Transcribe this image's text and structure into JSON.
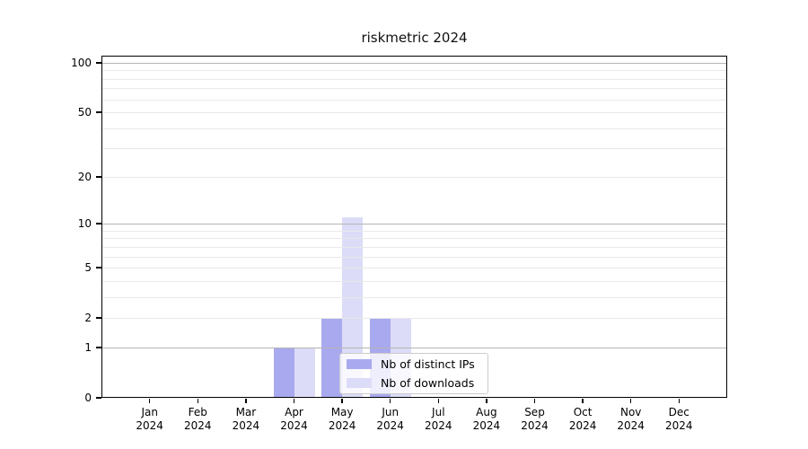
{
  "chart_data": {
    "type": "bar",
    "title": "riskmetric 2024",
    "categories": [
      "Jan 2024",
      "Feb 2024",
      "Mar 2024",
      "Apr 2024",
      "May 2024",
      "Jun 2024",
      "Jul 2024",
      "Aug 2024",
      "Sep 2024",
      "Oct 2024",
      "Nov 2024",
      "Dec 2024"
    ],
    "series": [
      {
        "name": "Nb of distinct IPs",
        "color": "#a9a9ef",
        "values": [
          0,
          0,
          0,
          1,
          2,
          2,
          0,
          0,
          0,
          0,
          0,
          0
        ]
      },
      {
        "name": "Nb of downloads",
        "color": "#dcdcf8",
        "values": [
          0,
          0,
          0,
          1,
          11,
          2,
          0,
          0,
          0,
          0,
          0,
          0
        ]
      }
    ],
    "yscale": "log1p",
    "yticks": [
      0,
      1,
      2,
      5,
      10,
      20,
      50,
      100
    ],
    "ylim": [
      0,
      110
    ],
    "grid": true,
    "legend_position": "lower-center",
    "xlabel": "",
    "ylabel": ""
  },
  "colors": {
    "grid_major": "#b5b5b5",
    "grid_minor": "#e9e9e9",
    "spine": "#000000",
    "text": "#000000",
    "legend_border": "#cccccc",
    "legend_bg": "#ffffff"
  }
}
